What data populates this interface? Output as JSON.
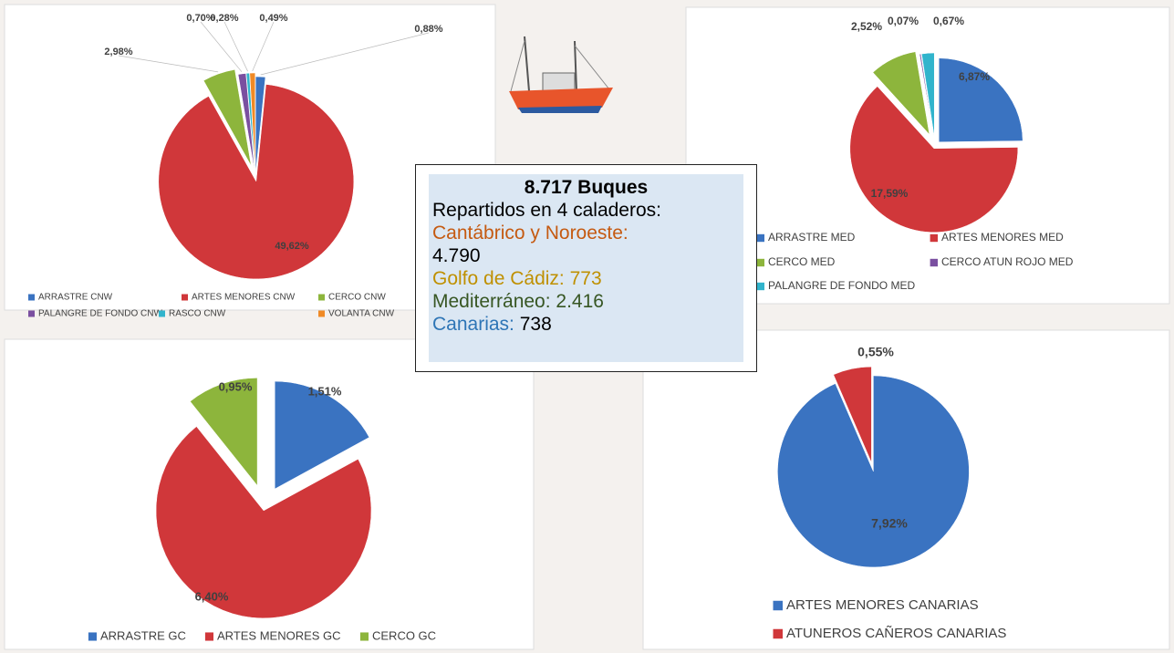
{
  "chart_data": [
    {
      "type": "pie",
      "name": "CNW",
      "categories": [
        "ARRASTRE CNW",
        "ARTES MENORES CNW",
        "CERCO CNW",
        "PALANGRE DE FONDO CNW",
        "RASCO CNW",
        "VOLANTA CNW"
      ],
      "values": [
        0.88,
        49.62,
        2.98,
        0.7,
        0.28,
        0.49
      ],
      "value_labels": [
        "0,88%",
        "49,62%",
        "2,98%",
        "0,70%",
        "0,28%",
        "0,49%"
      ],
      "colors": [
        "#3a73c1",
        "#d0373a",
        "#8db53c",
        "#7a4fa0",
        "#31b4cc",
        "#f08a25"
      ]
    },
    {
      "type": "pie",
      "name": "MED",
      "categories": [
        "ARRASTRE MED",
        "ARTES MENORES MED",
        "CERCO MED",
        "CERCO ATUN ROJO MED",
        "PALANGRE DE FONDO MED"
      ],
      "values": [
        6.87,
        17.59,
        2.52,
        0.07,
        0.67
      ],
      "value_labels": [
        "6,87%",
        "17,59%",
        "2,52%",
        "0,07%",
        "0,67%"
      ],
      "colors": [
        "#3a73c1",
        "#d0373a",
        "#8db53c",
        "#7a4fa0",
        "#31b4cc"
      ]
    },
    {
      "type": "pie",
      "name": "GC",
      "categories": [
        "ARRASTRE GC",
        "ARTES MENORES GC",
        "CERCO GC"
      ],
      "values": [
        1.51,
        6.4,
        0.95
      ],
      "value_labels": [
        "1,51%",
        "6,40%",
        "0,95%"
      ],
      "colors": [
        "#3a73c1",
        "#d0373a",
        "#8db53c"
      ]
    },
    {
      "type": "pie",
      "name": "CANARIAS",
      "categories": [
        "ARTES MENORES CANARIAS",
        "ATUNEROS CAÑEROS CANARIAS"
      ],
      "values": [
        7.92,
        0.55
      ],
      "value_labels": [
        "7,92%",
        "0,55%"
      ],
      "colors": [
        "#3a73c1",
        "#d0373a"
      ]
    }
  ],
  "info_box": {
    "title": "8.717 Buques",
    "subtitle": "Repartidos en 4 caladeros:",
    "lines": [
      {
        "label": "Cantábrico y Noroeste:",
        "value": "4.790",
        "label_color": "#c55a11",
        "value_color": "#000000"
      },
      {
        "label": "Golfo de Cádiz:",
        "value": "773",
        "label_color": "#bf9000",
        "value_color": "#bf9000"
      },
      {
        "label": "Mediterráneo:",
        "value": "2.416",
        "label_color": "#375623",
        "value_color": "#375623"
      },
      {
        "label": "Canarias:",
        "value": "738",
        "label_color": "#2e75b6",
        "value_color": "#000000"
      }
    ]
  }
}
